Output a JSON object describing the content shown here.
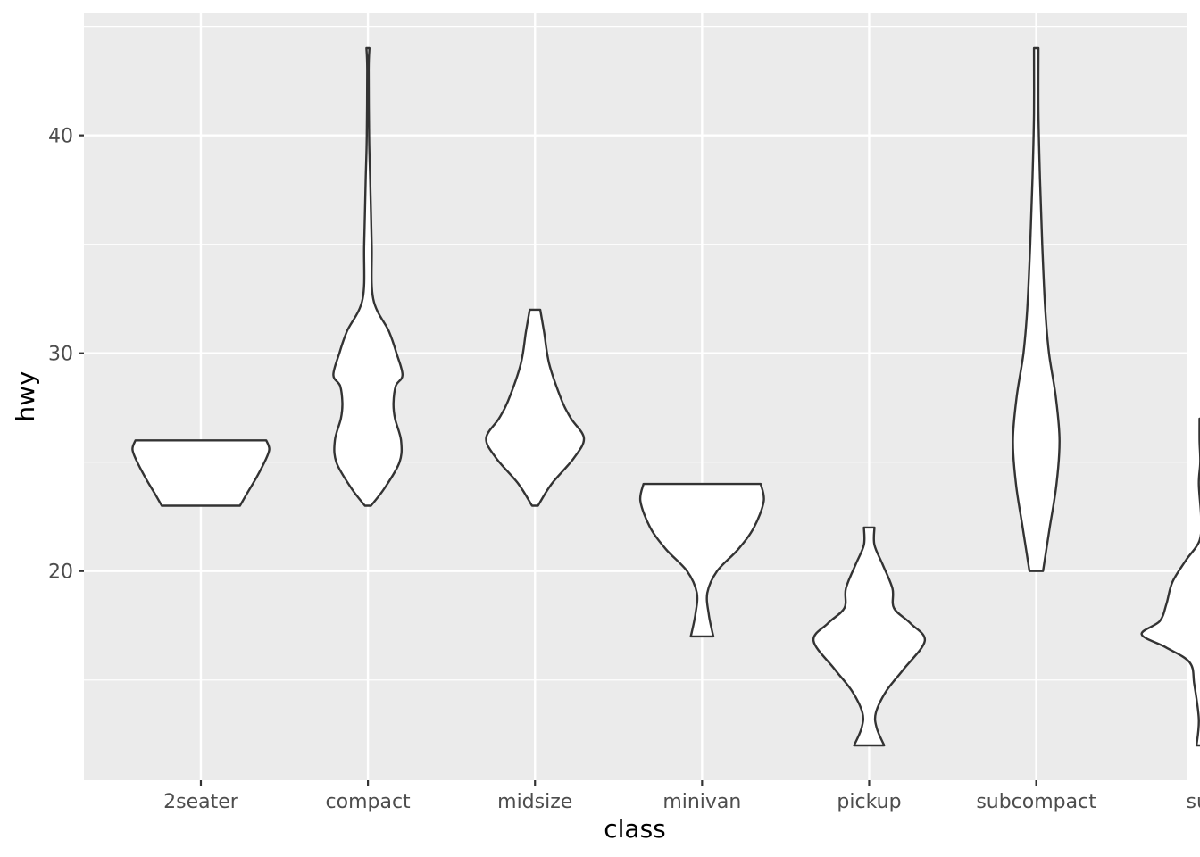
{
  "chart_data": {
    "type": "violin",
    "title": "",
    "xlabel": "class",
    "ylabel": "hwy",
    "ylim": [
      10.4,
      45.6
    ],
    "yticks": [
      20,
      30,
      40
    ],
    "yticks_minor": [
      15,
      25,
      35,
      45
    ],
    "grid": true,
    "categories": [
      "2seater",
      "compact",
      "midsize",
      "minivan",
      "pickup",
      "subcompact",
      "suv"
    ],
    "violins": [
      {
        "category": "2seater",
        "min": 23,
        "max": 26,
        "profile": [
          [
            23,
            0.52
          ],
          [
            23.6,
            0.62
          ],
          [
            24.3,
            0.74
          ],
          [
            25.1,
            0.86
          ],
          [
            25.6,
            0.91
          ],
          [
            26,
            0.87
          ]
        ]
      },
      {
        "category": "compact",
        "min": 23,
        "max": 44,
        "profile": [
          [
            23,
            0.04
          ],
          [
            23.8,
            0.22
          ],
          [
            25,
            0.42
          ],
          [
            26,
            0.44
          ],
          [
            27,
            0.36
          ],
          [
            27.7,
            0.34
          ],
          [
            28.5,
            0.37
          ],
          [
            29,
            0.46
          ],
          [
            30,
            0.38
          ],
          [
            31,
            0.28
          ],
          [
            32.5,
            0.07
          ],
          [
            35,
            0.05
          ],
          [
            38,
            0.03
          ],
          [
            40,
            0.015
          ],
          [
            43,
            0.01
          ],
          [
            44,
            0.02
          ]
        ]
      },
      {
        "category": "midsize",
        "min": 23,
        "max": 32,
        "profile": [
          [
            23,
            0.04
          ],
          [
            24,
            0.22
          ],
          [
            25.2,
            0.52
          ],
          [
            26.1,
            0.65
          ],
          [
            27,
            0.48
          ],
          [
            27.8,
            0.36
          ],
          [
            29.5,
            0.19
          ],
          [
            31,
            0.12
          ],
          [
            32,
            0.07
          ]
        ]
      },
      {
        "category": "minivan",
        "min": 17,
        "max": 24,
        "profile": [
          [
            17,
            0.15
          ],
          [
            18,
            0.09
          ],
          [
            19,
            0.07
          ],
          [
            20,
            0.2
          ],
          [
            21,
            0.48
          ],
          [
            22,
            0.69
          ],
          [
            23.2,
            0.82
          ],
          [
            24,
            0.78
          ]
        ]
      },
      {
        "category": "pickup",
        "min": 12,
        "max": 22,
        "profile": [
          [
            12,
            0.2
          ],
          [
            12.8,
            0.1
          ],
          [
            13.5,
            0.09
          ],
          [
            14.5,
            0.23
          ],
          [
            15.5,
            0.46
          ],
          [
            16.8,
            0.74
          ],
          [
            17.6,
            0.55
          ],
          [
            18.3,
            0.33
          ],
          [
            19.2,
            0.31
          ],
          [
            20.3,
            0.18
          ],
          [
            21.2,
            0.07
          ],
          [
            22,
            0.07
          ]
        ]
      },
      {
        "category": "subcompact",
        "min": 20,
        "max": 44,
        "profile": [
          [
            20,
            0.09
          ],
          [
            22,
            0.18
          ],
          [
            24,
            0.27
          ],
          [
            26,
            0.31
          ],
          [
            28,
            0.26
          ],
          [
            30,
            0.17
          ],
          [
            32,
            0.12
          ],
          [
            35,
            0.08
          ],
          [
            38,
            0.05
          ],
          [
            41,
            0.03
          ],
          [
            44,
            0.03
          ]
        ]
      },
      {
        "category": "suv",
        "min": 12,
        "max": 27,
        "profile": [
          [
            12,
            0.09
          ],
          [
            13.2,
            0.06
          ],
          [
            14.8,
            0.12
          ],
          [
            15.8,
            0.18
          ],
          [
            16.5,
            0.5
          ],
          [
            17.1,
            0.82
          ],
          [
            17.7,
            0.58
          ],
          [
            18.5,
            0.49
          ],
          [
            19.5,
            0.41
          ],
          [
            20.5,
            0.23
          ],
          [
            21.4,
            0.05
          ],
          [
            22.5,
            0.03
          ],
          [
            24,
            0.06
          ],
          [
            25,
            0.04
          ],
          [
            26,
            0.05
          ],
          [
            27,
            0.05
          ]
        ]
      }
    ]
  }
}
